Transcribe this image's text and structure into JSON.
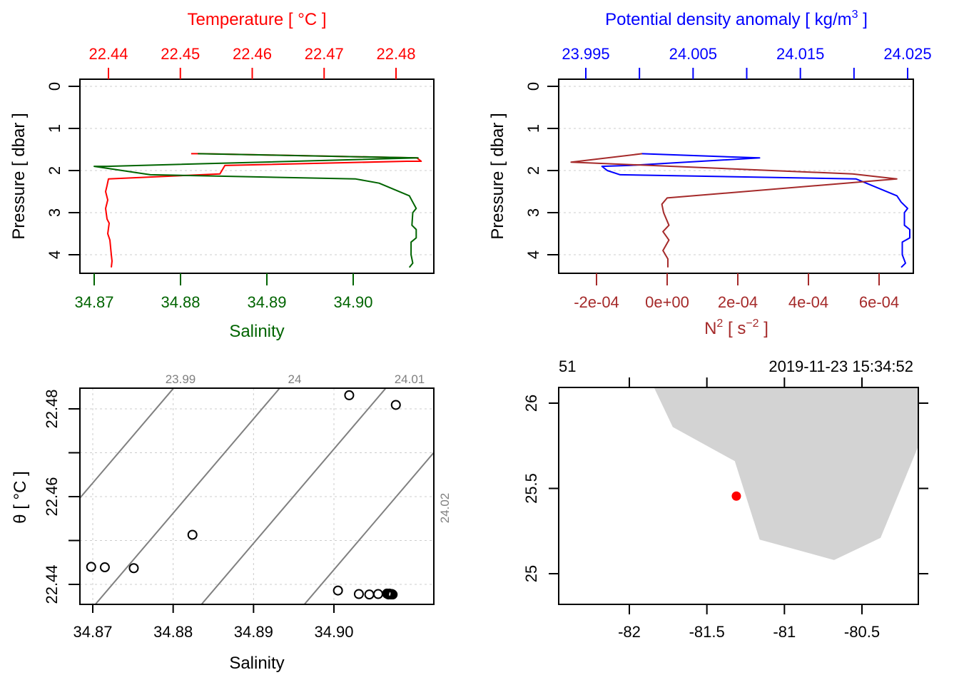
{
  "chart_data": [
    {
      "type": "line",
      "panel": "profile-temperature-salinity",
      "ylabel": "Pressure [ dbar ]",
      "y_ticks": [
        "0",
        "1",
        "2",
        "3",
        "4"
      ],
      "ylim": [
        0,
        4.4
      ],
      "y_reversed": true,
      "grid": true,
      "top_axis": {
        "label": "Temperature [ °C ]",
        "color": "#ff0000",
        "ticks": [
          "22.44",
          "22.45",
          "22.46",
          "22.47",
          "22.48"
        ],
        "tick_values": [
          22.44,
          22.45,
          22.46,
          22.47,
          22.48
        ]
      },
      "bottom_axis": {
        "label": "Salinity",
        "color": "#006400",
        "ticks": [
          "34.87",
          "34.88",
          "34.89",
          "34.90"
        ],
        "tick_values": [
          34.87,
          34.88,
          34.89,
          34.9
        ]
      },
      "series": [
        {
          "name": "Temperature",
          "color": "#ff0000",
          "axis": "top",
          "x": [
            22.4515,
            22.4531,
            22.4829,
            22.4835,
            22.4815,
            22.4562,
            22.4555,
            22.44,
            22.4398,
            22.4396,
            22.4399,
            22.4396,
            22.4398,
            22.4401,
            22.4399,
            22.4402,
            22.4404,
            22.4405,
            22.4404
          ],
          "p": [
            1.6,
            1.6,
            1.7,
            1.78,
            1.78,
            1.88,
            2.08,
            2.2,
            2.36,
            2.5,
            2.7,
            2.9,
            3.15,
            3.25,
            3.5,
            3.65,
            4.0,
            4.15,
            4.3
          ]
        },
        {
          "name": "Salinity",
          "color": "#006400",
          "axis": "bottom",
          "x": [
            34.882,
            34.9075,
            34.8715,
            34.87,
            34.8765,
            34.9003,
            34.903,
            34.9065,
            34.9069,
            34.9073,
            34.9069,
            34.9068,
            34.9073,
            34.9073,
            34.9067,
            34.9067,
            34.9069,
            34.9065
          ],
          "p": [
            1.6,
            1.7,
            1.9,
            1.9,
            2.1,
            2.2,
            2.3,
            2.6,
            2.75,
            2.9,
            3.0,
            3.3,
            3.4,
            3.6,
            3.7,
            4.0,
            4.2,
            4.3
          ]
        }
      ]
    },
    {
      "type": "line",
      "panel": "profile-density-n2",
      "ylabel": "Pressure [ dbar ]",
      "y_ticks": [
        "0",
        "1",
        "2",
        "3",
        "4"
      ],
      "ylim": [
        0,
        4.4
      ],
      "y_reversed": true,
      "grid": true,
      "top_axis": {
        "label": "Potential density anomaly [ kg/m3 ]",
        "label_main": "Potential density anomaly [ kg/m",
        "label_sup": "3",
        "label_end": " ]",
        "color": "#0000ff",
        "ticks": [
          "23.995",
          "24.005",
          "24.015",
          "24.025"
        ],
        "tick_values": [
          23.995,
          24.005,
          24.015,
          24.025
        ],
        "minor_tick_values": [
          24.0,
          24.01,
          24.02
        ]
      },
      "bottom_axis": {
        "label": "N2 [ s-2 ]",
        "label_main": "N",
        "label_sup": "2",
        "label_mid": " [ s",
        "label_sup2": "−2",
        "label_end": " ]",
        "color": "#a52a2a",
        "ticks": [
          "-2e-04",
          "0e+00",
          "2e-04",
          "4e-04",
          "6e-04"
        ],
        "tick_values": [
          -0.0002,
          0.0,
          0.0002,
          0.0004,
          0.0006
        ]
      },
      "series": [
        {
          "name": "Potential density anomaly",
          "color": "#0000ff",
          "axis": "top",
          "x": [
            24.0002,
            24.0112,
            23.999,
            23.9965,
            23.997,
            23.9982,
            24.0202,
            24.024,
            24.0244,
            24.025,
            24.0247,
            24.0247,
            24.0252,
            24.0252,
            24.0245,
            24.0245,
            24.0248,
            24.0244
          ],
          "p": [
            1.6,
            1.7,
            1.88,
            1.9,
            2.0,
            2.1,
            2.2,
            2.6,
            2.75,
            2.9,
            3.0,
            3.3,
            3.4,
            3.6,
            3.7,
            4.0,
            4.2,
            4.3
          ]
        },
        {
          "name": "N2",
          "color": "#a52a2a",
          "axis": "bottom",
          "x": [
            -7.1e-05,
            -0.000272,
            0.000525,
            0.00065,
            0.0,
            -1.5e-05,
            -1e-05,
            5e-06,
            -1.2e-05,
            5e-06,
            -1.2e-05,
            2e-06,
            2e-06
          ],
          "p": [
            1.6,
            1.8,
            2.08,
            2.2,
            2.65,
            2.8,
            3.0,
            3.3,
            3.45,
            3.65,
            3.9,
            4.1,
            4.3
          ]
        }
      ]
    },
    {
      "type": "scatter",
      "panel": "ts-diagram",
      "xlabel": "Salinity",
      "ylabel": "θ [ °C ]",
      "x_ticks": [
        "34.87",
        "34.88",
        "34.89",
        "34.90"
      ],
      "x_tick_values": [
        34.87,
        34.88,
        34.89,
        34.9
      ],
      "y_ticks": [
        "22.44",
        "22.46",
        "22.48"
      ],
      "y_tick_values": [
        22.44,
        22.46,
        22.48
      ],
      "y_minor_tick_values": [
        22.45,
        22.47
      ],
      "xlim": [
        34.8683,
        34.9095
      ],
      "ylim": [
        22.4354,
        22.4846
      ],
      "grid": true,
      "isopycnals": [
        {
          "label": "23.99",
          "value": 23.99
        },
        {
          "label": "24",
          "value": 24.0
        },
        {
          "label": "24.01",
          "value": 24.01
        },
        {
          "label": "24.02",
          "value": 24.02
        }
      ],
      "points": [
        {
          "s": 34.9019,
          "t": 22.4831
        },
        {
          "s": 34.9077,
          "t": 22.4809
        },
        {
          "s": 34.8824,
          "t": 22.4513
        },
        {
          "s": 34.8698,
          "t": 22.444
        },
        {
          "s": 34.8715,
          "t": 22.4439
        },
        {
          "s": 34.8751,
          "t": 22.4437
        },
        {
          "s": 34.9005,
          "t": 22.4386
        },
        {
          "s": 34.9031,
          "t": 22.4378
        },
        {
          "s": 34.9044,
          "t": 22.4377
        },
        {
          "s": 34.9055,
          "t": 22.4378
        },
        {
          "s": 34.9066,
          "t": 22.4379
        },
        {
          "s": 34.9068,
          "t": 22.4377
        },
        {
          "s": 34.907,
          "t": 22.4378
        },
        {
          "s": 34.9071,
          "t": 22.4377
        },
        {
          "s": 34.9073,
          "t": 22.4377
        },
        {
          "s": 34.9069,
          "t": 22.4379
        },
        {
          "s": 34.9072,
          "t": 22.4378
        },
        {
          "s": 34.9067,
          "t": 22.4378
        }
      ]
    },
    {
      "type": "map",
      "panel": "station-map",
      "header_left": "51",
      "header_right": "2019-11-23 15:34:52",
      "x_ticks": [
        "-82",
        "-81.5",
        "-81",
        "-80.5"
      ],
      "x_tick_values": [
        -82,
        -81.5,
        -81,
        -80.5
      ],
      "y_ticks": [
        "25",
        "25.5",
        "26"
      ],
      "y_tick_values": [
        25,
        25.5,
        26
      ],
      "xlim": [
        -82.45,
        -80.14
      ],
      "ylim": [
        24.82,
        26.09
      ],
      "land_color": "#d3d3d3",
      "land_polygon": [
        [
          -81.84,
          26.09
        ],
        [
          -80.14,
          26.09
        ],
        [
          -80.14,
          25.74
        ],
        [
          -80.38,
          25.21
        ],
        [
          -80.68,
          25.08
        ],
        [
          -81.16,
          25.2
        ],
        [
          -81.32,
          25.66
        ],
        [
          -81.72,
          25.86
        ]
      ],
      "station": {
        "lon": -81.31,
        "lat": 25.455,
        "color": "#ff0000"
      }
    }
  ]
}
